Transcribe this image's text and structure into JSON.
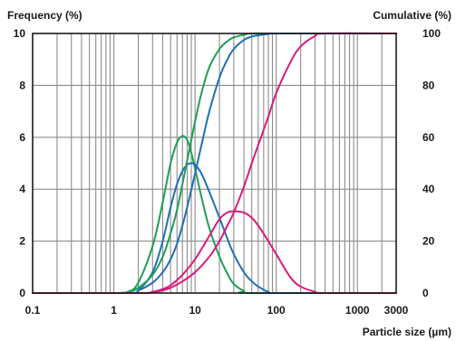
{
  "chart_data": {
    "type": "line",
    "left_axis_label": "Frequency (%)",
    "right_axis_label": "Cumulative (%)",
    "xlabel": "Particle size (µm)",
    "x_scale": "log",
    "xlim": [
      0.1,
      3000
    ],
    "ylim_left": [
      0,
      10
    ],
    "ylim_right": [
      0,
      100
    ],
    "x_ticks": [
      "0.1",
      "1",
      "10",
      "100",
      "1000",
      "3000"
    ],
    "y_ticks_left": [
      "0",
      "2",
      "4",
      "6",
      "8",
      "10"
    ],
    "y_ticks_right": [
      "0",
      "20",
      "40",
      "60",
      "80",
      "100"
    ],
    "grid": true,
    "colors": {
      "green": "#1f9e57",
      "blue": "#1f6fb5",
      "magenta": "#d81b7f"
    },
    "series": [
      {
        "color": "green",
        "axis": "left",
        "kind": "frequency",
        "x": [
          0.1,
          1,
          1.5,
          2,
          3,
          4,
          5,
          6,
          7,
          8,
          9,
          10,
          12,
          15,
          20,
          25,
          30,
          40,
          50,
          3000
        ],
        "y": [
          0,
          0,
          0.05,
          0.4,
          1.8,
          3.5,
          5.0,
          5.8,
          6.05,
          5.9,
          5.4,
          4.8,
          3.7,
          2.5,
          1.4,
          0.75,
          0.35,
          0.08,
          0,
          0
        ]
      },
      {
        "color": "blue",
        "axis": "left",
        "kind": "frequency",
        "x": [
          0.1,
          1.5,
          2,
          3,
          4,
          5,
          6,
          7,
          8,
          9,
          10,
          12,
          15,
          20,
          25,
          30,
          40,
          50,
          60,
          80,
          100,
          3000
        ],
        "y": [
          0,
          0,
          0.1,
          0.8,
          2.0,
          3.3,
          4.2,
          4.7,
          4.95,
          5.0,
          4.95,
          4.6,
          3.9,
          2.9,
          2.1,
          1.5,
          0.8,
          0.45,
          0.25,
          0.05,
          0,
          0
        ]
      },
      {
        "color": "magenta",
        "axis": "left",
        "kind": "frequency",
        "x": [
          0.1,
          2,
          3,
          4,
          5,
          7,
          10,
          15,
          20,
          25,
          30,
          40,
          50,
          60,
          80,
          100,
          150,
          200,
          300,
          400,
          3000
        ],
        "y": [
          0,
          0,
          0.05,
          0.15,
          0.3,
          0.7,
          1.3,
          2.2,
          2.85,
          3.1,
          3.15,
          3.1,
          2.9,
          2.6,
          2.0,
          1.5,
          0.6,
          0.25,
          0.05,
          0,
          0
        ]
      },
      {
        "color": "green",
        "axis": "right",
        "kind": "cumulative",
        "x": [
          0.1,
          1,
          1.5,
          2,
          3,
          4,
          5,
          6,
          7,
          8,
          10,
          12,
          15,
          20,
          25,
          30,
          40,
          50,
          100,
          3000
        ],
        "y": [
          0,
          0,
          0.5,
          2,
          7,
          14,
          23,
          32,
          42,
          51,
          66,
          77,
          87,
          94,
          97,
          98.5,
          99.5,
          100,
          100,
          100
        ]
      },
      {
        "color": "blue",
        "axis": "right",
        "kind": "cumulative",
        "x": [
          0.1,
          1.5,
          2,
          3,
          4,
          5,
          6,
          7,
          8,
          10,
          12,
          15,
          20,
          25,
          30,
          40,
          50,
          60,
          80,
          100,
          3000
        ],
        "y": [
          0,
          0,
          1,
          4,
          8,
          13,
          19,
          26,
          33,
          46,
          57,
          70,
          83,
          90,
          94,
          97.5,
          98.8,
          99.3,
          99.8,
          100,
          100
        ]
      },
      {
        "color": "magenta",
        "axis": "right",
        "kind": "cumulative",
        "x": [
          0.1,
          2,
          3,
          4,
          5,
          7,
          10,
          15,
          20,
          25,
          30,
          40,
          50,
          60,
          80,
          100,
          150,
          200,
          300,
          400,
          3000
        ],
        "y": [
          0,
          0,
          0.3,
          1,
          2,
          4.5,
          8,
          14,
          20,
          26,
          31,
          41,
          50,
          57,
          68,
          77,
          89,
          95,
          99,
          100,
          100
        ]
      }
    ]
  }
}
